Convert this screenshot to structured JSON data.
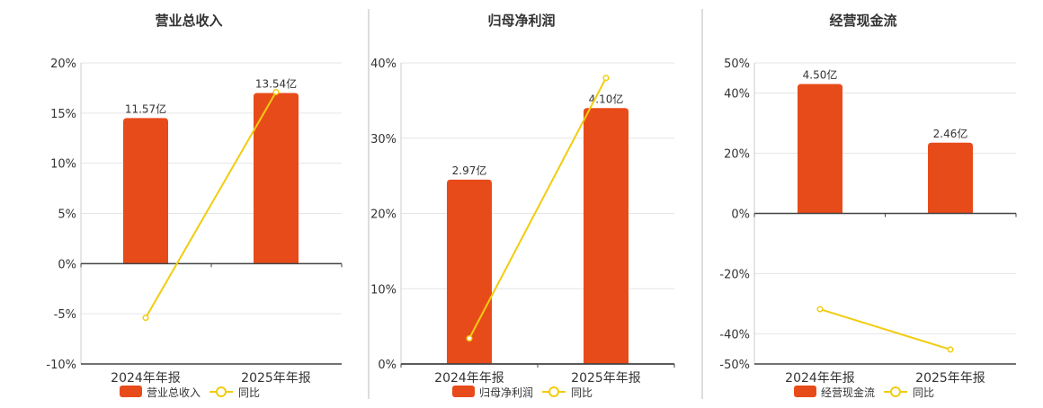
{
  "colors": {
    "bar": "#e84b1a",
    "line": "#f2cc0f",
    "grid": "#e6e6e6",
    "axis": "#444444",
    "separator": "#bbbbbb",
    "text": "#333333"
  },
  "chart_data": [
    {
      "type": "bar",
      "title": "营业总收入",
      "categories": [
        "2024年年报",
        "2025年年报"
      ],
      "series": [
        {
          "name": "营业总收入",
          "kind": "bar",
          "values": [
            14.5,
            17.0
          ],
          "labels": [
            "11.57亿",
            "13.54亿"
          ]
        },
        {
          "name": "同比",
          "kind": "line",
          "values": [
            -5.4,
            17.1
          ]
        }
      ],
      "ylim": [
        -10,
        20
      ],
      "yticks": [
        -10,
        -5,
        0,
        5,
        10,
        15,
        20
      ],
      "ytick_labels": [
        "-10%",
        "-5%",
        "0%",
        "5%",
        "10%",
        "15%",
        "20%"
      ],
      "grid": true,
      "legend": "bottom"
    },
    {
      "type": "bar",
      "title": "归母净利润",
      "categories": [
        "2024年年报",
        "2025年年报"
      ],
      "series": [
        {
          "name": "归母净利润",
          "kind": "bar",
          "values": [
            24.5,
            34.0
          ],
          "labels": [
            "2.97亿",
            "4.10亿"
          ]
        },
        {
          "name": "同比",
          "kind": "line",
          "values": [
            3.4,
            38.0
          ]
        }
      ],
      "ylim": [
        0,
        40
      ],
      "yticks": [
        0,
        10,
        20,
        30,
        40
      ],
      "ytick_labels": [
        "0%",
        "10%",
        "20%",
        "30%",
        "40%"
      ],
      "grid": true,
      "legend": "bottom"
    },
    {
      "type": "bar",
      "title": "经营现金流",
      "categories": [
        "2024年年报",
        "2025年年报"
      ],
      "series": [
        {
          "name": "经营现金流",
          "kind": "bar",
          "values": [
            43.0,
            23.5
          ],
          "labels": [
            "4.50亿",
            "2.46亿"
          ]
        },
        {
          "name": "同比",
          "kind": "line",
          "values": [
            -31.8,
            -45.2
          ]
        }
      ],
      "ylim": [
        -50,
        50
      ],
      "yticks": [
        -50,
        -40,
        -20,
        0,
        20,
        40,
        50
      ],
      "ytick_labels": [
        "-50%",
        "-40%",
        "-20%",
        "0%",
        "20%",
        "40%",
        "50%"
      ],
      "grid": true,
      "legend": "bottom"
    }
  ]
}
